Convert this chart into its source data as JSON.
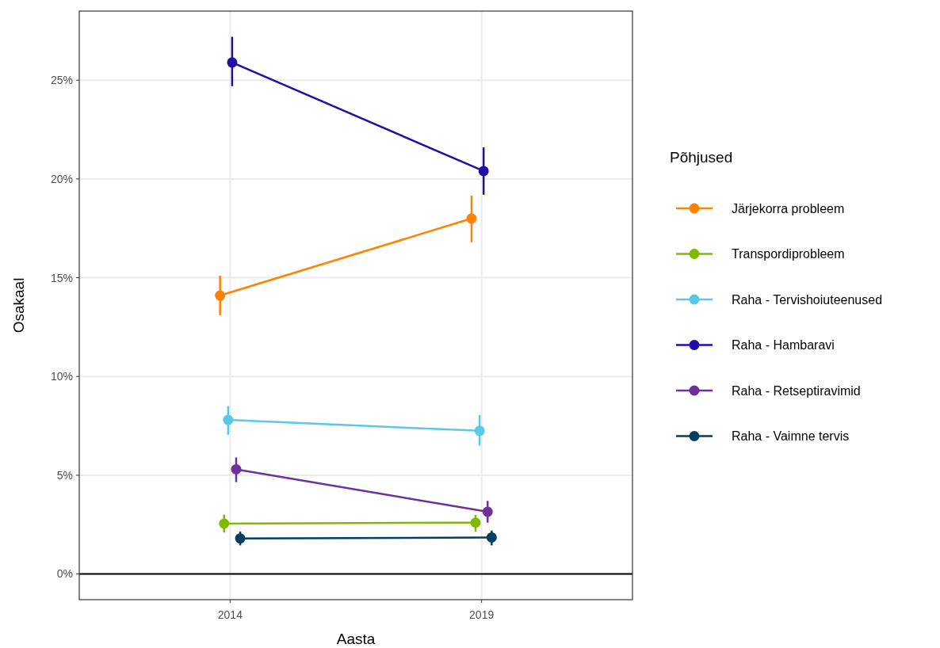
{
  "chart_data": {
    "type": "line",
    "xlabel": "Aasta",
    "ylabel": "Osakaal",
    "legend_title": "Põhjused",
    "xlim": [
      2011,
      2022
    ],
    "xticks": [
      2014,
      2019
    ],
    "ylim": [
      -1.3,
      28.5
    ],
    "yticks": [
      {
        "value": 0,
        "label": "0%"
      },
      {
        "value": 5,
        "label": "5%"
      },
      {
        "value": 10,
        "label": "10%"
      },
      {
        "value": 15,
        "label": "15%"
      },
      {
        "value": 20,
        "label": "20%"
      },
      {
        "value": 25,
        "label": "25%"
      }
    ],
    "grid": true,
    "legend": "right",
    "marker": "circle",
    "ref_lines": [
      {
        "axis": "y",
        "value": 0,
        "color": "#000000"
      }
    ],
    "series": [
      {
        "name": "Järjekorra probleem",
        "color": "#ff8200",
        "x": [
          2013.8,
          2018.8
        ],
        "values": [
          14.1,
          18.0
        ],
        "errors": [
          [
            13.1,
            15.1
          ],
          [
            16.8,
            19.15
          ]
        ]
      },
      {
        "name": "Transpordiprobleem",
        "color": "#7fba00",
        "x": [
          2013.88,
          2018.88
        ],
        "values": [
          2.55,
          2.6
        ],
        "errors": [
          [
            2.1,
            3.0
          ],
          [
            2.15,
            3.0
          ]
        ]
      },
      {
        "name": "Raha - Tervishoiuteenused",
        "color": "#5bc8e8",
        "x": [
          2013.96,
          2018.96
        ],
        "values": [
          7.8,
          7.25
        ],
        "errors": [
          [
            7.05,
            8.5
          ],
          [
            6.5,
            8.05
          ]
        ]
      },
      {
        "name": "Raha - Hambaravi",
        "color": "#1e0fa8",
        "x": [
          2014.04,
          2019.04
        ],
        "values": [
          25.9,
          20.4
        ],
        "errors": [
          [
            24.7,
            27.2
          ],
          [
            19.2,
            21.6
          ]
        ]
      },
      {
        "name": "Raha - Retseptiravimid",
        "color": "#70309a",
        "x": [
          2014.12,
          2019.12
        ],
        "values": [
          5.3,
          3.15
        ],
        "errors": [
          [
            4.65,
            5.9
          ],
          [
            2.6,
            3.7
          ]
        ]
      },
      {
        "name": "Raha - Vaimne tervis",
        "color": "#003f63",
        "x": [
          2014.2,
          2019.2
        ],
        "values": [
          1.8,
          1.85
        ],
        "errors": [
          [
            1.45,
            2.15
          ],
          [
            1.45,
            2.2
          ]
        ]
      }
    ]
  }
}
